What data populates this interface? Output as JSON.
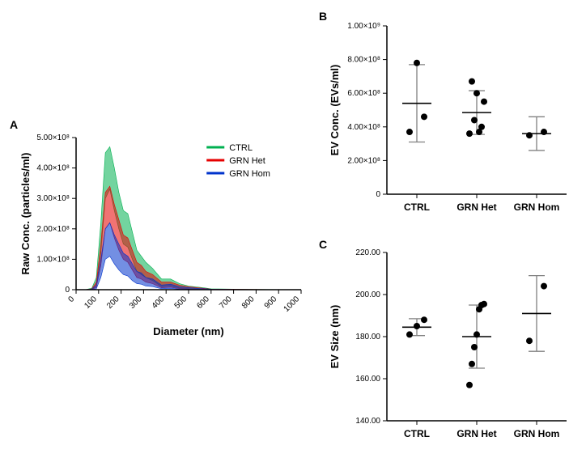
{
  "panelA": {
    "label": "A",
    "chart": {
      "type": "line-area",
      "xaxis": {
        "label": "Diameter (nm)",
        "min": 0,
        "max": 1000,
        "ticks": [
          0,
          100,
          200,
          300,
          400,
          500,
          600,
          700,
          800,
          900,
          1000
        ],
        "fontsize": 10,
        "label_fontsize": 13,
        "tick_rotation": -45
      },
      "yaxis": {
        "label": "Raw Conc. (particles/ml)",
        "min": 0,
        "max": 500000000.0,
        "ticks": [
          0,
          100000000.0,
          200000000.0,
          300000000.0,
          400000000.0,
          500000000.0
        ],
        "tick_labels": [
          "0",
          "1.00×10⁸",
          "2.00×10⁸",
          "3.00×10⁸",
          "4.00×10⁸",
          "5.00×10⁸"
        ],
        "fontsize": 10,
        "label_fontsize": 13
      },
      "legend": {
        "fontsize": 11,
        "items": [
          {
            "label": "CTRL",
            "color": "#00b050"
          },
          {
            "label": "GRN Het",
            "color": "#e60000"
          },
          {
            "label": "GRN Hom",
            "color": "#0033cc"
          }
        ]
      },
      "series": [
        {
          "name": "CTRL",
          "color": "#00b050",
          "top": [
            [
              40,
              0
            ],
            [
              70,
              0.05
            ],
            [
              90,
              0.4
            ],
            [
              110,
              2.2
            ],
            [
              130,
              4.5
            ],
            [
              150,
              4.7
            ],
            [
              170,
              4.0
            ],
            [
              190,
              3.2
            ],
            [
              210,
              2.6
            ],
            [
              230,
              2.5
            ],
            [
              250,
              1.9
            ],
            [
              270,
              1.3
            ],
            [
              290,
              1.1
            ],
            [
              310,
              0.9
            ],
            [
              340,
              0.7
            ],
            [
              380,
              0.35
            ],
            [
              420,
              0.35
            ],
            [
              460,
              0.2
            ],
            [
              500,
              0.12
            ],
            [
              550,
              0.08
            ],
            [
              600,
              0.03
            ],
            [
              700,
              0.02
            ],
            [
              800,
              0.01
            ],
            [
              900,
              0.005
            ],
            [
              1000,
              0
            ]
          ],
          "bottom": [
            [
              40,
              0
            ],
            [
              70,
              0
            ],
            [
              90,
              0.15
            ],
            [
              110,
              1.2
            ],
            [
              130,
              3.0
            ],
            [
              150,
              3.3
            ],
            [
              170,
              2.6
            ],
            [
              190,
              2.0
            ],
            [
              210,
              1.5
            ],
            [
              230,
              1.4
            ],
            [
              250,
              1.0
            ],
            [
              270,
              0.6
            ],
            [
              290,
              0.5
            ],
            [
              310,
              0.4
            ],
            [
              340,
              0.3
            ],
            [
              380,
              0.1
            ],
            [
              420,
              0.12
            ],
            [
              460,
              0.05
            ],
            [
              500,
              0.03
            ],
            [
              550,
              0.02
            ],
            [
              600,
              0
            ],
            [
              700,
              0
            ],
            [
              800,
              0
            ],
            [
              900,
              0
            ],
            [
              1000,
              0
            ]
          ]
        },
        {
          "name": "GRN Het",
          "color": "#e60000",
          "top": [
            [
              40,
              0
            ],
            [
              70,
              0.03
            ],
            [
              90,
              0.25
            ],
            [
              110,
              1.5
            ],
            [
              130,
              3.2
            ],
            [
              150,
              3.4
            ],
            [
              170,
              2.8
            ],
            [
              190,
              2.3
            ],
            [
              210,
              1.8
            ],
            [
              230,
              1.7
            ],
            [
              250,
              1.3
            ],
            [
              270,
              0.9
            ],
            [
              290,
              0.8
            ],
            [
              310,
              0.6
            ],
            [
              340,
              0.5
            ],
            [
              380,
              0.25
            ],
            [
              420,
              0.25
            ],
            [
              460,
              0.15
            ],
            [
              500,
              0.1
            ],
            [
              550,
              0.06
            ],
            [
              600,
              0.02
            ],
            [
              700,
              0.015
            ],
            [
              800,
              0.008
            ],
            [
              900,
              0.003
            ],
            [
              1000,
              0
            ]
          ],
          "bottom": [
            [
              40,
              0
            ],
            [
              70,
              0
            ],
            [
              90,
              0.08
            ],
            [
              110,
              0.8
            ],
            [
              130,
              2.0
            ],
            [
              150,
              2.2
            ],
            [
              170,
              1.7
            ],
            [
              190,
              1.3
            ],
            [
              210,
              1.0
            ],
            [
              230,
              0.9
            ],
            [
              250,
              0.65
            ],
            [
              270,
              0.4
            ],
            [
              290,
              0.35
            ],
            [
              310,
              0.25
            ],
            [
              340,
              0.2
            ],
            [
              380,
              0.06
            ],
            [
              420,
              0.08
            ],
            [
              460,
              0.03
            ],
            [
              500,
              0.02
            ],
            [
              550,
              0.01
            ],
            [
              600,
              0
            ],
            [
              700,
              0
            ],
            [
              800,
              0
            ],
            [
              900,
              0
            ],
            [
              1000,
              0
            ]
          ]
        },
        {
          "name": "GRN Hom",
          "color": "#0033cc",
          "top": [
            [
              40,
              0
            ],
            [
              70,
              0.02
            ],
            [
              90,
              0.15
            ],
            [
              110,
              1.0
            ],
            [
              130,
              2.0
            ],
            [
              150,
              2.2
            ],
            [
              170,
              1.8
            ],
            [
              190,
              1.5
            ],
            [
              210,
              1.2
            ],
            [
              230,
              1.1
            ],
            [
              250,
              0.85
            ],
            [
              270,
              0.6
            ],
            [
              290,
              0.55
            ],
            [
              310,
              0.4
            ],
            [
              340,
              0.35
            ],
            [
              380,
              0.15
            ],
            [
              420,
              0.18
            ],
            [
              460,
              0.1
            ],
            [
              500,
              0.07
            ],
            [
              550,
              0.04
            ],
            [
              600,
              0.015
            ],
            [
              700,
              0.01
            ],
            [
              800,
              0.005
            ],
            [
              900,
              0.002
            ],
            [
              1000,
              0
            ]
          ],
          "bottom": [
            [
              40,
              0
            ],
            [
              70,
              0
            ],
            [
              90,
              0.03
            ],
            [
              110,
              0.4
            ],
            [
              130,
              1.0
            ],
            [
              150,
              1.1
            ],
            [
              170,
              0.85
            ],
            [
              190,
              0.65
            ],
            [
              210,
              0.5
            ],
            [
              230,
              0.45
            ],
            [
              250,
              0.3
            ],
            [
              270,
              0.2
            ],
            [
              290,
              0.18
            ],
            [
              310,
              0.12
            ],
            [
              340,
              0.1
            ],
            [
              380,
              0.03
            ],
            [
              420,
              0.04
            ],
            [
              460,
              0.015
            ],
            [
              500,
              0.01
            ],
            [
              550,
              0.005
            ],
            [
              600,
              0
            ],
            [
              700,
              0
            ],
            [
              800,
              0
            ],
            [
              900,
              0
            ],
            [
              1000,
              0
            ]
          ]
        }
      ],
      "axis_color": "#000000",
      "background": "#ffffff"
    }
  },
  "panelB": {
    "label": "B",
    "chart": {
      "type": "scatter",
      "yaxis": {
        "label": "EV Conc. (EVs/ml)",
        "min": 0,
        "max": 1000000000.0,
        "ticks": [
          0,
          200000000.0,
          400000000.0,
          600000000.0,
          800000000.0,
          1000000000.0
        ],
        "tick_labels": [
          "0",
          "2.00×10⁸",
          "4.00×10⁸",
          "6.00×10⁸",
          "8.00×10⁸",
          "1.00×10⁹"
        ],
        "fontsize": 10,
        "label_fontsize": 13
      },
      "xaxis": {
        "categories": [
          "CTRL",
          "GRN Het",
          "GRN Hom"
        ],
        "fontsize": 12,
        "bold": true
      },
      "groups": [
        {
          "name": "CTRL",
          "points": [
            370000000.0,
            780000000.0,
            460000000.0
          ],
          "mean": 540000000.0,
          "sd": 230000000.0
        },
        {
          "name": "GRN Het",
          "points": [
            360000000.0,
            670000000.0,
            440000000.0,
            600000000.0,
            370000000.0,
            400000000.0,
            550000000.0
          ],
          "mean": 485000000.0,
          "sd": 130000000.0
        },
        {
          "name": "GRN Hom",
          "points": [
            350000000.0,
            370000000.0
          ],
          "mean": 360000000.0,
          "sd": 100000000.0
        }
      ],
      "marker_color": "#000000",
      "marker_size": 4,
      "error_color": "#808080",
      "error_cap": 10,
      "axis_color": "#000000"
    }
  },
  "panelC": {
    "label": "C",
    "chart": {
      "type": "scatter",
      "yaxis": {
        "label": "EV Size (nm)",
        "min": 140,
        "max": 220,
        "ticks": [
          140,
          160,
          180,
          200,
          220
        ],
        "tick_labels": [
          "140.00",
          "160.00",
          "180.00",
          "200.00",
          "220.00"
        ],
        "fontsize": 10,
        "label_fontsize": 13
      },
      "xaxis": {
        "categories": [
          "CTRL",
          "GRN Het",
          "GRN Hom"
        ],
        "fontsize": 12,
        "bold": true
      },
      "groups": [
        {
          "name": "CTRL",
          "points": [
            181,
            185,
            188
          ],
          "mean": 184.5,
          "sd": 4
        },
        {
          "name": "GRN Het",
          "points": [
            157,
            167,
            175,
            181,
            193,
            195,
            195.5
          ],
          "mean": 180,
          "sd": 15
        },
        {
          "name": "GRN Hom",
          "points": [
            178,
            204
          ],
          "mean": 191,
          "sd": 18
        }
      ],
      "marker_color": "#000000",
      "marker_size": 4,
      "error_color": "#808080",
      "error_cap": 10,
      "axis_color": "#000000"
    }
  }
}
